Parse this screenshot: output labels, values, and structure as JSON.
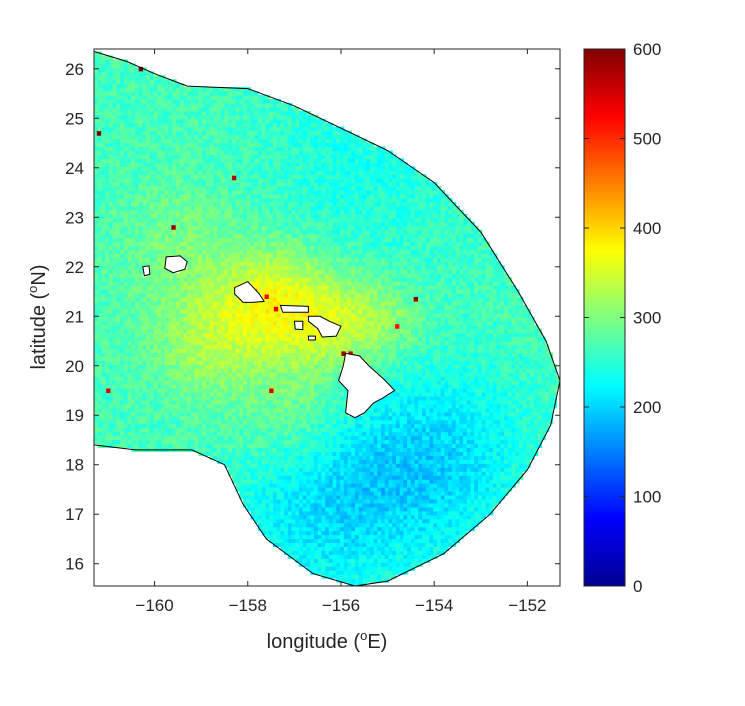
{
  "chart_data": {
    "type": "heatmap",
    "xlabel_main": "longitude (",
    "xlabel_sup": "o",
    "xlabel_end": "E)",
    "ylabel_main": "latitude (",
    "ylabel_sup": "o",
    "ylabel_end": "N)",
    "xlim": [
      -161.3,
      -151.3
    ],
    "ylim": [
      15.55,
      26.4
    ],
    "x_ticks": [
      -160,
      -158,
      -156,
      -154,
      -152
    ],
    "x_tick_labels": [
      "−160",
      "−158",
      "−156",
      "−154",
      "−152"
    ],
    "y_ticks": [
      16,
      17,
      18,
      19,
      20,
      21,
      22,
      23,
      24,
      25,
      26
    ],
    "y_tick_labels": [
      "16",
      "17",
      "18",
      "19",
      "20",
      "21",
      "22",
      "23",
      "24",
      "25",
      "26"
    ],
    "colorbar": {
      "range": [
        0,
        600
      ],
      "ticks": [
        0,
        100,
        200,
        300,
        400,
        500,
        600
      ],
      "tick_labels": [
        "0",
        "100",
        "200",
        "300",
        "400",
        "500",
        "600"
      ],
      "colormap": "jet"
    },
    "coverage_boundary": [
      [
        -161.3,
        26.35
      ],
      [
        -160.6,
        26.15
      ],
      [
        -160.0,
        25.9
      ],
      [
        -159.3,
        25.65
      ],
      [
        -158.0,
        25.6
      ],
      [
        -157.0,
        25.25
      ],
      [
        -156.0,
        24.8
      ],
      [
        -155.0,
        24.35
      ],
      [
        -154.0,
        23.7
      ],
      [
        -153.0,
        22.7
      ],
      [
        -152.2,
        21.5
      ],
      [
        -151.6,
        20.5
      ],
      [
        -151.3,
        19.7
      ],
      [
        -151.5,
        18.8
      ],
      [
        -152.0,
        17.9
      ],
      [
        -152.8,
        17.0
      ],
      [
        -153.8,
        16.2
      ],
      [
        -155.0,
        15.65
      ],
      [
        -155.7,
        15.55
      ],
      [
        -156.6,
        15.8
      ],
      [
        -157.6,
        16.5
      ],
      [
        -158.1,
        17.2
      ],
      [
        -158.5,
        18.0
      ],
      [
        -159.2,
        18.3
      ],
      [
        -160.4,
        18.3
      ],
      [
        -161.3,
        18.4
      ]
    ],
    "islands": [
      {
        "name_hidden": "kauai",
        "points": [
          [
            -159.75,
            22.2
          ],
          [
            -159.45,
            22.22
          ],
          [
            -159.3,
            22.1
          ],
          [
            -159.35,
            21.95
          ],
          [
            -159.6,
            21.88
          ],
          [
            -159.78,
            21.97
          ]
        ]
      },
      {
        "name_hidden": "niihau",
        "points": [
          [
            -160.25,
            22.0
          ],
          [
            -160.12,
            22.02
          ],
          [
            -160.1,
            21.85
          ],
          [
            -160.22,
            21.82
          ]
        ]
      },
      {
        "name_hidden": "oahu",
        "points": [
          [
            -158.28,
            21.58
          ],
          [
            -158.0,
            21.7
          ],
          [
            -157.75,
            21.45
          ],
          [
            -157.65,
            21.3
          ],
          [
            -157.9,
            21.28
          ],
          [
            -158.1,
            21.28
          ],
          [
            -158.28,
            21.45
          ]
        ]
      },
      {
        "name_hidden": "molokai",
        "points": [
          [
            -157.3,
            21.22
          ],
          [
            -156.7,
            21.2
          ],
          [
            -156.7,
            21.08
          ],
          [
            -157.25,
            21.08
          ]
        ]
      },
      {
        "name_hidden": "lanai",
        "points": [
          [
            -157.0,
            20.9
          ],
          [
            -156.82,
            20.9
          ],
          [
            -156.82,
            20.73
          ],
          [
            -156.98,
            20.74
          ]
        ]
      },
      {
        "name_hidden": "kahoolawe",
        "points": [
          [
            -156.7,
            20.6
          ],
          [
            -156.55,
            20.6
          ],
          [
            -156.55,
            20.52
          ],
          [
            -156.7,
            20.52
          ]
        ]
      },
      {
        "name_hidden": "maui",
        "points": [
          [
            -156.7,
            21.0
          ],
          [
            -156.45,
            21.0
          ],
          [
            -156.25,
            20.9
          ],
          [
            -156.0,
            20.8
          ],
          [
            -156.1,
            20.6
          ],
          [
            -156.4,
            20.58
          ],
          [
            -156.5,
            20.75
          ],
          [
            -156.7,
            20.9
          ]
        ]
      },
      {
        "name_hidden": "hawaii",
        "points": [
          [
            -155.9,
            20.25
          ],
          [
            -155.6,
            20.2
          ],
          [
            -155.4,
            20.0
          ],
          [
            -155.05,
            19.7
          ],
          [
            -154.85,
            19.5
          ],
          [
            -155.1,
            19.35
          ],
          [
            -155.3,
            19.25
          ],
          [
            -155.5,
            19.05
          ],
          [
            -155.7,
            18.95
          ],
          [
            -155.9,
            19.05
          ],
          [
            -155.85,
            19.5
          ],
          [
            -156.05,
            19.7
          ],
          [
            -155.95,
            20.0
          ]
        ]
      }
    ],
    "field_description_hidden": {
      "base_value": 265,
      "hot_spots": [
        {
          "x": -157.5,
          "y": 21.3,
          "amp": 95,
          "r": 0.8
        },
        {
          "x": -156.2,
          "y": 20.9,
          "amp": 70,
          "r": 0.7
        },
        {
          "x": -158.9,
          "y": 20.5,
          "amp": 55,
          "r": 0.8
        },
        {
          "x": -155.0,
          "y": 20.9,
          "amp": 40,
          "r": 0.6
        },
        {
          "x": -159.5,
          "y": 22.5,
          "amp": 30,
          "r": 0.9
        },
        {
          "x": -157.0,
          "y": 19.0,
          "amp": 35,
          "r": 0.9
        }
      ],
      "cold_spots": [
        {
          "x": -155.3,
          "y": 17.6,
          "amp": -55,
          "r": 1.4
        },
        {
          "x": -153.5,
          "y": 18.3,
          "amp": -40,
          "r": 1.2
        },
        {
          "x": -157.0,
          "y": 17.0,
          "amp": -30,
          "r": 1.2
        },
        {
          "x": -155.5,
          "y": 24.0,
          "amp": -25,
          "r": 1.5
        }
      ],
      "outliers": [
        {
          "x": -158.0,
          "y": 21.55,
          "v": 560
        },
        {
          "x": -157.85,
          "y": 21.5,
          "v": 530
        },
        {
          "x": -155.95,
          "y": 20.25,
          "v": 590
        },
        {
          "x": -155.8,
          "y": 20.25,
          "v": 560
        },
        {
          "x": -154.4,
          "y": 21.35,
          "v": 600
        },
        {
          "x": -154.8,
          "y": 20.8,
          "v": 520
        },
        {
          "x": -157.5,
          "y": 19.5,
          "v": 550
        },
        {
          "x": -158.3,
          "y": 23.8,
          "v": 570
        },
        {
          "x": -159.6,
          "y": 22.8,
          "v": 580
        },
        {
          "x": -160.3,
          "y": 26.0,
          "v": 600
        },
        {
          "x": -161.2,
          "y": 24.7,
          "v": 600
        },
        {
          "x": -161.0,
          "y": 19.5,
          "v": 540
        },
        {
          "x": -157.6,
          "y": 21.4,
          "v": 520
        },
        {
          "x": -157.4,
          "y": 21.15,
          "v": 540
        }
      ]
    }
  }
}
